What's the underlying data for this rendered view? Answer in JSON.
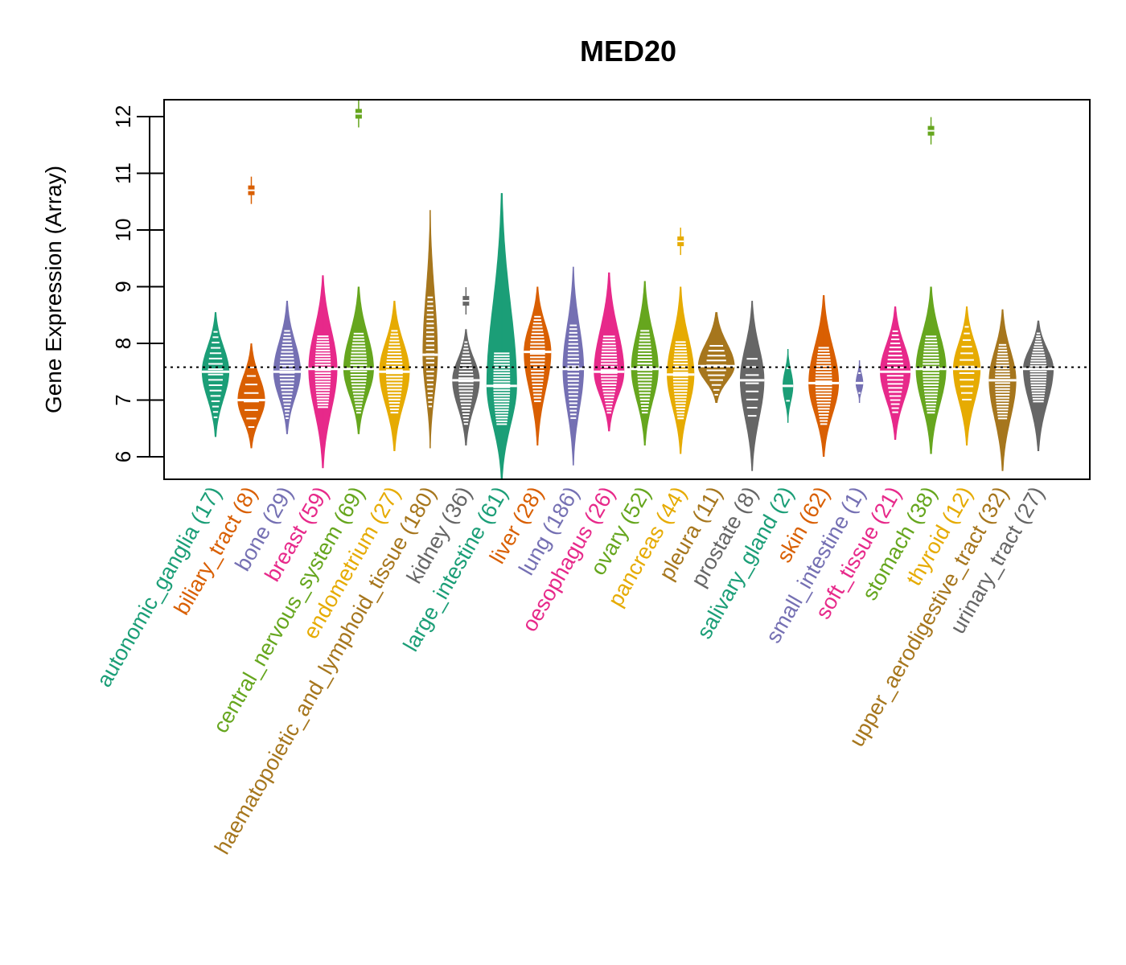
{
  "chart_data": {
    "type": "violin",
    "title": "MED20",
    "xlabel": "",
    "ylabel": "Gene Expression (Array)",
    "ylim": [
      5.6,
      12.3
    ],
    "yticks": [
      6,
      7,
      8,
      9,
      10,
      11,
      12
    ],
    "reference_line": 7.58,
    "grid": false,
    "legend": "none",
    "categories": [
      {
        "name": "autonomic_ganglia",
        "n": 17,
        "label": "autonomic_ganglia (17)",
        "color": "#1B9E77",
        "min": 6.35,
        "max": 8.55,
        "median": 7.5,
        "q_hi": 8.0,
        "q_lo": 6.9,
        "width": 0.9
      },
      {
        "name": "biliary_tract",
        "n": 8,
        "label": "biliary_tract (8)",
        "color": "#D95F02",
        "min": 6.15,
        "max": 8.0,
        "median": 7.0,
        "q_hi": 7.4,
        "q_lo": 6.7,
        "width": 0.9,
        "outliers": [
          10.7
        ]
      },
      {
        "name": "bone",
        "n": 29,
        "label": "bone (29)",
        "color": "#7570B3",
        "min": 6.4,
        "max": 8.75,
        "median": 7.5,
        "q_hi": 8.0,
        "q_lo": 6.9,
        "width": 0.9
      },
      {
        "name": "breast",
        "n": 59,
        "label": "breast (59)",
        "color": "#E7298A",
        "min": 5.8,
        "max": 9.2,
        "median": 7.55,
        "q_hi": 7.9,
        "q_lo": 7.1,
        "width": 0.95
      },
      {
        "name": "central_nervous_system",
        "n": 69,
        "label": "central_nervous_system (69)",
        "color": "#66A61E",
        "min": 6.4,
        "max": 9.0,
        "median": 7.55,
        "q_hi": 7.95,
        "q_lo": 7.0,
        "width": 1.0,
        "outliers": [
          12.05
        ]
      },
      {
        "name": "endometrium",
        "n": 27,
        "label": "endometrium (27)",
        "color": "#E6AB02",
        "min": 6.1,
        "max": 8.75,
        "median": 7.5,
        "q_hi": 8.0,
        "q_lo": 7.0,
        "width": 1.0
      },
      {
        "name": "haematopoietic_and_lymphoid_tissue",
        "n": 180,
        "label": "haematopoietic_and_lymphoid_tissue (180)",
        "color": "#A6761D",
        "min": 6.15,
        "max": 10.35,
        "median": 7.8,
        "q_hi": 8.6,
        "q_lo": 7.1,
        "width": 0.5
      },
      {
        "name": "kidney",
        "n": 36,
        "label": "kidney (36)",
        "color": "#666666",
        "min": 6.2,
        "max": 8.25,
        "median": 7.35,
        "q_hi": 7.8,
        "q_lo": 6.8,
        "width": 0.9,
        "outliers": [
          8.75
        ]
      },
      {
        "name": "large_intestine",
        "n": 61,
        "label": "large_intestine (61)",
        "color": "#1B9E77",
        "min": 5.6,
        "max": 10.65,
        "median": 7.25,
        "q_hi": 7.6,
        "q_lo": 6.8,
        "width": 1.0
      },
      {
        "name": "liver",
        "n": 28,
        "label": "liver (28)",
        "color": "#D95F02",
        "min": 6.2,
        "max": 9.0,
        "median": 7.85,
        "q_hi": 8.25,
        "q_lo": 7.2,
        "width": 0.9
      },
      {
        "name": "lung",
        "n": 186,
        "label": "lung (186)",
        "color": "#7570B3",
        "min": 5.85,
        "max": 9.35,
        "median": 7.55,
        "q_hi": 8.1,
        "q_lo": 6.9,
        "width": 0.7
      },
      {
        "name": "oesophagus",
        "n": 26,
        "label": "oesophagus (26)",
        "color": "#E7298A",
        "min": 6.45,
        "max": 9.25,
        "median": 7.5,
        "q_hi": 7.9,
        "q_lo": 7.0,
        "width": 1.0
      },
      {
        "name": "ovary",
        "n": 52,
        "label": "ovary (52)",
        "color": "#66A61E",
        "min": 6.2,
        "max": 9.1,
        "median": 7.55,
        "q_hi": 8.0,
        "q_lo": 7.0,
        "width": 0.9
      },
      {
        "name": "pancreas",
        "n": 44,
        "label": "pancreas (44)",
        "color": "#E6AB02",
        "min": 6.05,
        "max": 9.0,
        "median": 7.45,
        "q_hi": 7.8,
        "q_lo": 6.9,
        "width": 0.9,
        "outliers": [
          9.8
        ]
      },
      {
        "name": "pleura",
        "n": 11,
        "label": "pleura (11)",
        "color": "#A6761D",
        "min": 6.95,
        "max": 8.55,
        "median": 7.6,
        "q_hi": 7.75,
        "q_lo": 7.3,
        "width": 1.2
      },
      {
        "name": "prostate",
        "n": 8,
        "label": "prostate (8)",
        "color": "#666666",
        "min": 5.75,
        "max": 8.75,
        "median": 7.35,
        "q_hi": 7.55,
        "q_lo": 6.9,
        "width": 0.8
      },
      {
        "name": "salivary_gland",
        "n": 2,
        "label": "salivary_gland (2)",
        "color": "#1B9E77",
        "min": 6.6,
        "max": 7.9,
        "median": 7.25,
        "q_hi": 7.6,
        "q_lo": 6.95,
        "width": 0.35
      },
      {
        "name": "skin",
        "n": 62,
        "label": "skin (62)",
        "color": "#D95F02",
        "min": 6.0,
        "max": 8.85,
        "median": 7.3,
        "q_hi": 7.7,
        "q_lo": 6.8,
        "width": 1.0
      },
      {
        "name": "small_intestine",
        "n": 1,
        "label": "small_intestine (1)",
        "color": "#7570B3",
        "min": 6.95,
        "max": 7.7,
        "median": 7.3,
        "q_hi": 7.4,
        "q_lo": 7.2,
        "width": 0.25
      },
      {
        "name": "soft_tissue",
        "n": 21,
        "label": "soft_tissue (21)",
        "color": "#E7298A",
        "min": 6.3,
        "max": 8.65,
        "median": 7.5,
        "q_hi": 8.0,
        "q_lo": 7.0,
        "width": 1.0
      },
      {
        "name": "stomach",
        "n": 38,
        "label": "stomach (38)",
        "color": "#66A61E",
        "min": 6.05,
        "max": 9.0,
        "median": 7.55,
        "q_hi": 7.9,
        "q_lo": 7.0,
        "width": 1.0,
        "outliers": [
          11.75
        ]
      },
      {
        "name": "thyroid",
        "n": 12,
        "label": "thyroid (12)",
        "color": "#E6AB02",
        "min": 6.2,
        "max": 8.65,
        "median": 7.55,
        "q_hi": 8.1,
        "q_lo": 7.2,
        "width": 0.9
      },
      {
        "name": "upper_aerodigestive_tract",
        "n": 32,
        "label": "upper_aerodigestive_tract (32)",
        "color": "#A6761D",
        "min": 5.75,
        "max": 8.6,
        "median": 7.35,
        "q_hi": 7.75,
        "q_lo": 6.9,
        "width": 0.9
      },
      {
        "name": "urinary_tract",
        "n": 27,
        "label": "urinary_tract (27)",
        "color": "#666666",
        "min": 6.1,
        "max": 8.4,
        "median": 7.55,
        "q_hi": 7.95,
        "q_lo": 7.2,
        "width": 1.0
      }
    ]
  }
}
